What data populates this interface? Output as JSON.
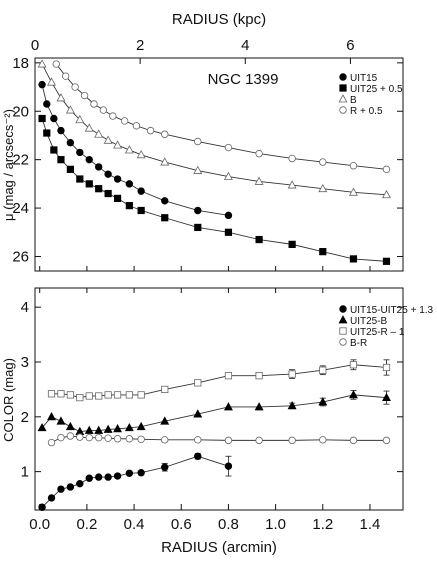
{
  "chart_data": [
    {
      "type": "scatter",
      "title": "NGC 1399",
      "xlabel_top": "RADIUS (kpc)",
      "xlim_top": [
        0,
        7.0
      ],
      "xticks_top": [
        0,
        2,
        4,
        6
      ],
      "ylabel": "μ (mag / arcsecs⁻²)",
      "ylim": [
        26.6,
        17.8
      ],
      "yticks": [
        18,
        20,
        22,
        24,
        26
      ],
      "y_inverted": true,
      "shared_x": "RADIUS (arcmin)",
      "xlim": [
        -0.02,
        1.54
      ],
      "legend_position": "top-right",
      "series": [
        {
          "name": "UIT15",
          "marker": "filled-circle",
          "x": [
            0.01,
            0.03,
            0.06,
            0.09,
            0.13,
            0.17,
            0.21,
            0.25,
            0.29,
            0.33,
            0.38,
            0.43,
            0.53,
            0.67,
            0.8
          ],
          "y": [
            18.9,
            19.7,
            20.3,
            20.8,
            21.3,
            21.7,
            22.0,
            22.3,
            22.6,
            22.8,
            23.0,
            23.3,
            23.7,
            24.1,
            24.3
          ]
        },
        {
          "name": "UIT25 + 0.5",
          "marker": "filled-square",
          "x": [
            0.01,
            0.03,
            0.06,
            0.09,
            0.13,
            0.17,
            0.21,
            0.25,
            0.29,
            0.33,
            0.38,
            0.43,
            0.53,
            0.67,
            0.8,
            0.93,
            1.07,
            1.2,
            1.33,
            1.47
          ],
          "y": [
            20.3,
            20.9,
            21.6,
            22.0,
            22.4,
            22.8,
            23.0,
            23.2,
            23.4,
            23.6,
            23.9,
            24.1,
            24.4,
            24.8,
            25.0,
            25.3,
            25.5,
            25.8,
            26.1,
            26.2
          ]
        },
        {
          "name": "B",
          "marker": "open-triangle",
          "x": [
            0.01,
            0.05,
            0.09,
            0.13,
            0.17,
            0.21,
            0.25,
            0.29,
            0.33,
            0.38,
            0.43,
            0.53,
            0.67,
            0.8,
            0.93,
            1.07,
            1.2,
            1.33,
            1.47
          ],
          "y": [
            18.05,
            18.8,
            19.45,
            19.95,
            20.35,
            20.7,
            20.95,
            21.2,
            21.4,
            21.6,
            21.8,
            22.1,
            22.45,
            22.7,
            22.9,
            23.05,
            23.2,
            23.35,
            23.45
          ]
        },
        {
          "name": "R + 0.5",
          "marker": "open-circle",
          "x": [
            0.07,
            0.11,
            0.15,
            0.19,
            0.23,
            0.27,
            0.31,
            0.36,
            0.41,
            0.47,
            0.53,
            0.67,
            0.8,
            0.93,
            1.07,
            1.2,
            1.33,
            1.47
          ],
          "y": [
            18.05,
            18.55,
            19.0,
            19.35,
            19.7,
            19.95,
            20.2,
            20.4,
            20.6,
            20.8,
            20.95,
            21.25,
            21.5,
            21.75,
            21.95,
            22.1,
            22.25,
            22.4
          ]
        }
      ]
    },
    {
      "type": "scatter",
      "xlabel": "RADIUS (arcmin)",
      "xlim": [
        -0.02,
        1.54
      ],
      "xticks": [
        0.0,
        0.2,
        0.4,
        0.6,
        0.8,
        1.0,
        1.2,
        1.4
      ],
      "ylabel": "COLOR (mag)",
      "ylim": [
        0.3,
        4.35
      ],
      "yticks": [
        1,
        2,
        3,
        4
      ],
      "legend_position": "top-right",
      "series": [
        {
          "name": "UIT15-UIT25 + 1.3",
          "marker": "filled-circle",
          "x": [
            0.01,
            0.05,
            0.09,
            0.13,
            0.17,
            0.21,
            0.25,
            0.29,
            0.33,
            0.38,
            0.43,
            0.53,
            0.67,
            0.8
          ],
          "y": [
            0.35,
            0.52,
            0.68,
            0.72,
            0.78,
            0.88,
            0.9,
            0.9,
            0.92,
            0.97,
            0.98,
            1.08,
            1.28,
            1.1
          ],
          "err": [
            0,
            0,
            0,
            0,
            0,
            0,
            0,
            0,
            0,
            0,
            0,
            0.07,
            0.05,
            0.18
          ]
        },
        {
          "name": "UIT25-B",
          "marker": "filled-triangle",
          "x": [
            0.01,
            0.05,
            0.09,
            0.13,
            0.17,
            0.21,
            0.25,
            0.29,
            0.33,
            0.38,
            0.43,
            0.53,
            0.67,
            0.8,
            0.93,
            1.07,
            1.2,
            1.33,
            1.47
          ],
          "y": [
            1.8,
            2.0,
            1.92,
            1.82,
            1.73,
            1.75,
            1.75,
            1.77,
            1.78,
            1.8,
            1.82,
            1.92,
            2.05,
            2.18,
            2.18,
            2.2,
            2.27,
            2.4,
            2.35
          ],
          "err": [
            0,
            0,
            0,
            0,
            0,
            0,
            0,
            0,
            0,
            0,
            0,
            0,
            0,
            0,
            0,
            0.05,
            0.07,
            0.08,
            0.12
          ]
        },
        {
          "name": "UIT25-R – 1",
          "marker": "open-square",
          "x": [
            0.05,
            0.09,
            0.13,
            0.17,
            0.21,
            0.25,
            0.29,
            0.33,
            0.38,
            0.43,
            0.53,
            0.67,
            0.8,
            0.93,
            1.07,
            1.2,
            1.33,
            1.47
          ],
          "y": [
            2.42,
            2.42,
            2.4,
            2.35,
            2.38,
            2.38,
            2.4,
            2.4,
            2.4,
            2.4,
            2.5,
            2.62,
            2.75,
            2.75,
            2.78,
            2.85,
            2.95,
            2.9
          ],
          "err": [
            0,
            0,
            0,
            0,
            0,
            0,
            0,
            0,
            0,
            0.04,
            0.04,
            0.05,
            0.05,
            0.05,
            0.08,
            0.08,
            0.09,
            0.14
          ]
        },
        {
          "name": "B-R",
          "marker": "open-circle",
          "x": [
            0.05,
            0.09,
            0.13,
            0.17,
            0.21,
            0.25,
            0.29,
            0.33,
            0.38,
            0.43,
            0.53,
            0.67,
            0.8,
            0.93,
            1.07,
            1.2,
            1.33,
            1.47
          ],
          "y": [
            1.53,
            1.62,
            1.65,
            1.63,
            1.62,
            1.62,
            1.61,
            1.6,
            1.6,
            1.59,
            1.58,
            1.58,
            1.57,
            1.57,
            1.57,
            1.58,
            1.57,
            1.57
          ]
        }
      ]
    }
  ]
}
